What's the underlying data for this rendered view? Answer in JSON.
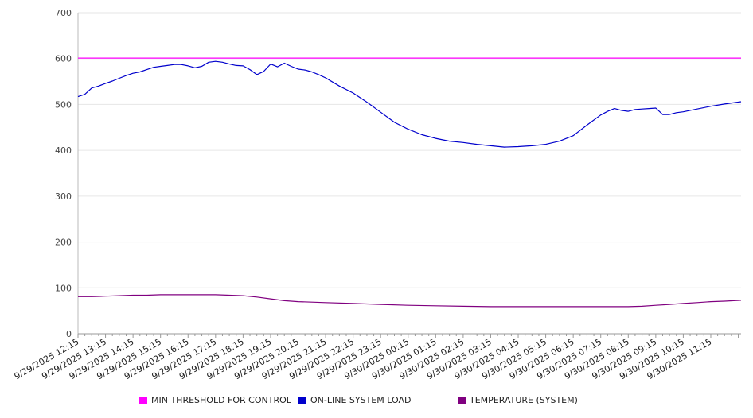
{
  "chart_data": {
    "type": "line",
    "ylim": [
      0,
      700
    ],
    "yticks": [
      0,
      100,
      200,
      300,
      400,
      500,
      600,
      700
    ],
    "grid": true,
    "legend_position": "bottom",
    "xticks": [
      "9/29/2025 12:15",
      "9/29/2025 13:15",
      "9/29/2025 14:15",
      "9/29/2025 15:15",
      "9/29/2025 16:15",
      "9/29/2025 17:15",
      "9/29/2025 18:15",
      "9/29/2025 19:15",
      "9/29/2025 20:15",
      "9/29/2025 21:15",
      "9/29/2025 22:15",
      "9/29/2025 23:15",
      "9/30/2025 00:15",
      "9/30/2025 01:15",
      "9/30/2025 02:15",
      "9/30/2025 03:15",
      "9/30/2025 04:15",
      "9/30/2025 05:15",
      "9/30/2025 06:15",
      "9/30/2025 07:15",
      "9/30/2025 08:15",
      "9/30/2025 09:15",
      "9/30/2025 10:15",
      "9/30/2025 11:15"
    ],
    "x_hours_range": [
      0,
      24.1
    ],
    "series": [
      {
        "name": "MIN THRESHOLD FOR CONTROL",
        "color": "#ff00ff",
        "x": [
          0,
          24.1
        ],
        "y": [
          601,
          601
        ]
      },
      {
        "name": "ON-LINE SYSTEM LOAD",
        "color": "#0000cc",
        "x": [
          0,
          0.25,
          0.5,
          0.75,
          1.0,
          1.25,
          1.5,
          1.75,
          2.0,
          2.25,
          2.5,
          2.75,
          3.0,
          3.25,
          3.5,
          3.75,
          4.0,
          4.25,
          4.5,
          4.75,
          5.0,
          5.25,
          5.5,
          5.75,
          6.0,
          6.25,
          6.5,
          6.75,
          7.0,
          7.25,
          7.5,
          7.75,
          8.0,
          8.25,
          8.5,
          8.75,
          9.0,
          9.5,
          10.0,
          10.5,
          11.0,
          11.5,
          12.0,
          12.5,
          13.0,
          13.5,
          14.0,
          14.5,
          15.0,
          15.5,
          16.0,
          16.5,
          17.0,
          17.5,
          18.0,
          18.5,
          19.0,
          19.25,
          19.5,
          19.75,
          20.0,
          20.25,
          20.5,
          20.75,
          21.0,
          21.25,
          21.5,
          21.75,
          22.0,
          22.5,
          23.0,
          23.5,
          24.1
        ],
        "y": [
          517,
          522,
          536,
          540,
          546,
          551,
          557,
          563,
          568,
          571,
          576,
          581,
          583,
          585,
          587,
          587,
          584,
          580,
          583,
          592,
          594,
          592,
          588,
          585,
          584,
          576,
          565,
          572,
          588,
          582,
          590,
          583,
          577,
          575,
          571,
          565,
          558,
          540,
          525,
          505,
          483,
          461,
          446,
          434,
          426,
          420,
          417,
          413,
          410,
          407,
          408,
          410,
          413,
          420,
          432,
          455,
          477,
          485,
          491,
          487,
          485,
          489,
          490,
          491,
          492,
          478,
          478,
          482,
          484,
          490,
          496,
          501,
          506
        ]
      },
      {
        "name": "TEMPERATURE (SYSTEM)",
        "color": "#800080",
        "x": [
          0,
          0.5,
          1.0,
          1.5,
          2.0,
          2.5,
          3.0,
          4.0,
          5.0,
          5.5,
          6.0,
          6.5,
          7.0,
          7.5,
          8.0,
          9.0,
          10.0,
          11.0,
          12.0,
          13.0,
          14.0,
          15.0,
          16.0,
          17.0,
          18.0,
          19.0,
          20.0,
          20.5,
          21.0,
          21.5,
          22.0,
          22.5,
          23.0,
          23.5,
          24.1
        ],
        "y": [
          81,
          81,
          82,
          83,
          84,
          84,
          85,
          85,
          85,
          84,
          83,
          80,
          76,
          72,
          70,
          68,
          66,
          64,
          62,
          61,
          60,
          59,
          59,
          59,
          59,
          59,
          59,
          60,
          62,
          64,
          66,
          68,
          70,
          71,
          73
        ]
      }
    ]
  }
}
